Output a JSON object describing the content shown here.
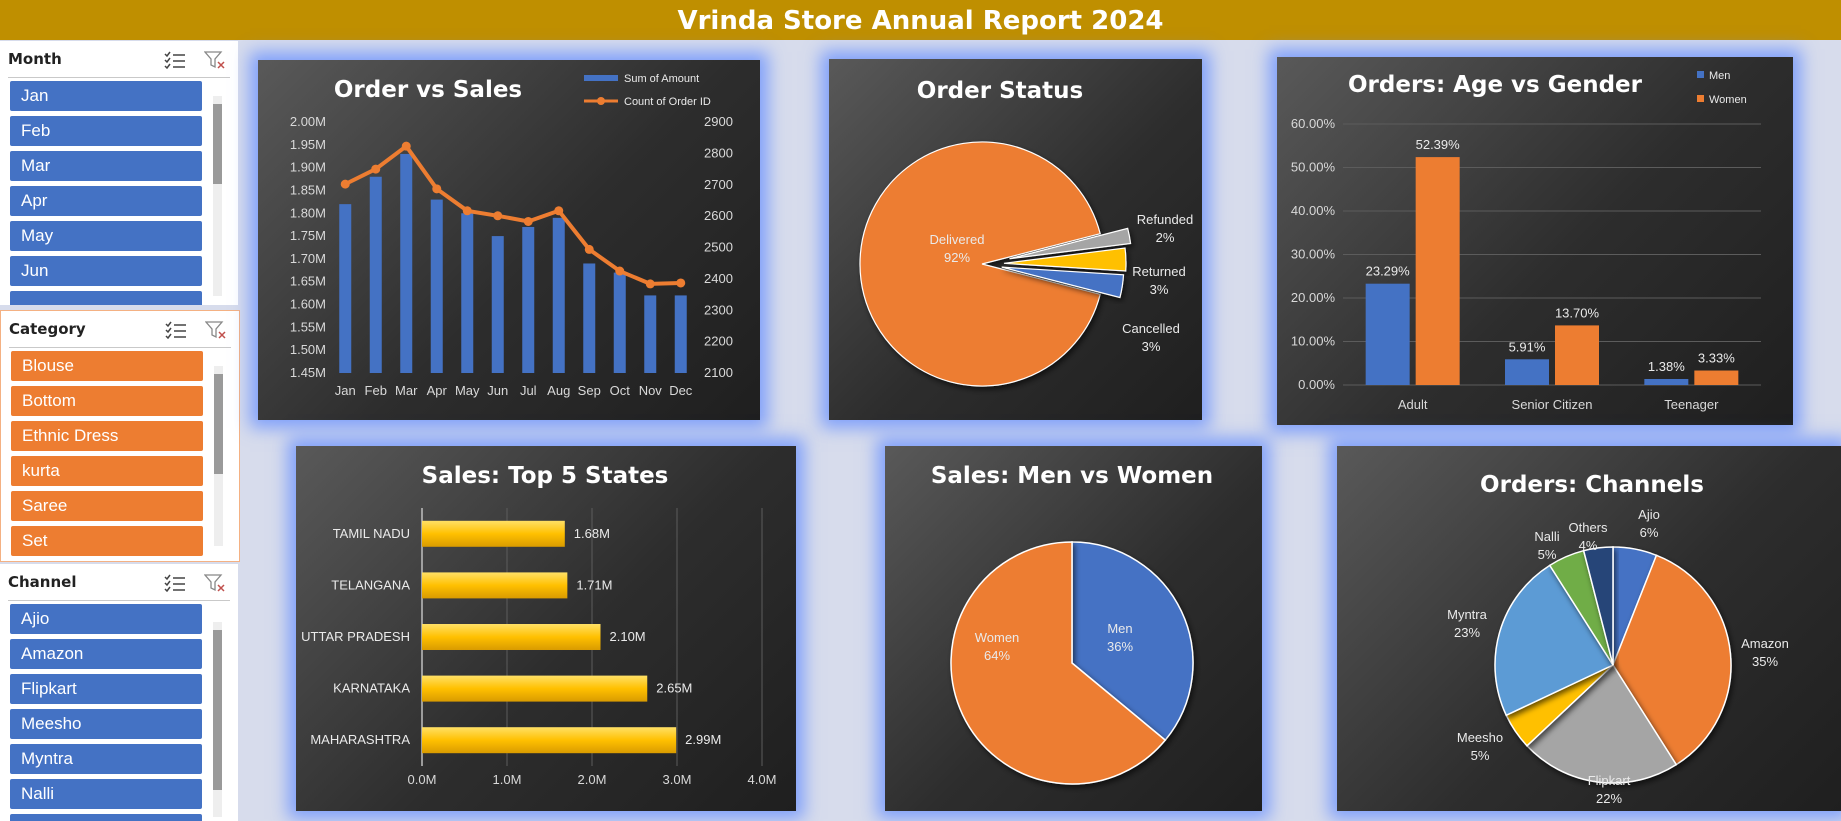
{
  "report": {
    "title": "Vrinda Store Annual Report 2024"
  },
  "slicers": [
    {
      "name": "Month",
      "color": "#4472c4",
      "items": [
        "Jan",
        "Feb",
        "Mar",
        "Apr",
        "May",
        "Jun",
        ""
      ]
    },
    {
      "name": "Category",
      "color": "#ed7d31",
      "items": [
        "Blouse",
        "Bottom",
        "Ethnic Dress",
        "kurta",
        "Saree",
        "Set"
      ]
    },
    {
      "name": "Channel",
      "color": "#4472c4",
      "items": [
        "Ajio",
        "Amazon",
        "Flipkart",
        "Meesho",
        "Myntra",
        "Nalli",
        ""
      ]
    }
  ],
  "chart_data": [
    {
      "type": "bar",
      "title": "Order vs Sales",
      "categories": [
        "Jan",
        "Feb",
        "Mar",
        "Apr",
        "May",
        "Jun",
        "Jul",
        "Aug",
        "Sep",
        "Oct",
        "Nov",
        "Dec"
      ],
      "series": [
        {
          "name": "Sum of Amount",
          "type": "bar",
          "color": "#4472c4",
          "axis": "left",
          "values": [
            1.82,
            1.88,
            1.93,
            1.83,
            1.8,
            1.75,
            1.77,
            1.79,
            1.69,
            1.67,
            1.62,
            1.62
          ]
        },
        {
          "name": "Count of Order ID",
          "type": "line",
          "color": "#ed7d31",
          "axis": "right",
          "values": [
            2702,
            2750,
            2823,
            2687,
            2617,
            2601,
            2583,
            2617,
            2494,
            2425,
            2384,
            2387
          ]
        }
      ],
      "ylim": [
        1.45,
        2.0
      ],
      "y_ticks": [
        "1.45M",
        "1.50M",
        "1.55M",
        "1.60M",
        "1.65M",
        "1.70M",
        "1.75M",
        "1.80M",
        "1.85M",
        "1.90M",
        "1.95M",
        "2.00M"
      ],
      "y2lim": [
        2100,
        2900
      ],
      "y2_ticks": [
        "2100",
        "2200",
        "2300",
        "2400",
        "2500",
        "2600",
        "2700",
        "2800",
        "2900"
      ],
      "legend": "top-right"
    },
    {
      "type": "pie",
      "title": "Order Status",
      "slices": [
        {
          "label": "Delivered",
          "value": 92,
          "pct": "92%",
          "color": "#ed7d31"
        },
        {
          "label": "Refunded",
          "value": 2,
          "pct": "2%",
          "color": "#a5a5a5"
        },
        {
          "label": "Returned",
          "value": 3,
          "pct": "3%",
          "color": "#ffc000"
        },
        {
          "label": "Cancelled",
          "value": 3,
          "pct": "3%",
          "color": "#4472c4"
        }
      ]
    },
    {
      "type": "bar",
      "title": "Orders: Age vs Gender",
      "categories": [
        "Adult",
        "Senior Citizen",
        "Teenager"
      ],
      "series": [
        {
          "name": "Men",
          "color": "#4472c4",
          "values": [
            23.29,
            5.91,
            1.38
          ],
          "labels": [
            "23.29%",
            "5.91%",
            "1.38%"
          ]
        },
        {
          "name": "Women",
          "color": "#ed7d31",
          "values": [
            52.39,
            13.7,
            3.33
          ],
          "labels": [
            "52.39%",
            "13.70%",
            "3.33%"
          ]
        }
      ],
      "ylim": [
        0,
        60
      ],
      "y_ticks": [
        "0.00%",
        "10.00%",
        "20.00%",
        "30.00%",
        "40.00%",
        "50.00%",
        "60.00%"
      ],
      "legend": "top-right"
    },
    {
      "type": "bar",
      "orientation": "horizontal",
      "title": "Sales: Top 5 States",
      "categories": [
        "TAMIL NADU",
        "TELANGANA",
        "UTTAR PRADESH",
        "KARNATAKA",
        "MAHARASHTRA"
      ],
      "values": [
        1.68,
        1.71,
        2.1,
        2.65,
        2.99
      ],
      "labels": [
        "1.68M",
        "1.71M",
        "2.10M",
        "2.65M",
        "2.99M"
      ],
      "color": "#ffc000",
      "xlim": [
        0,
        4
      ],
      "x_ticks": [
        "0.0M",
        "1.0M",
        "2.0M",
        "3.0M",
        "4.0M"
      ]
    },
    {
      "type": "pie",
      "title": "Sales: Men vs Women",
      "slices": [
        {
          "label": "Men",
          "value": 36,
          "pct": "36%",
          "color": "#4472c4"
        },
        {
          "label": "Women",
          "value": 64,
          "pct": "64%",
          "color": "#ed7d31"
        }
      ]
    },
    {
      "type": "pie",
      "title": "Orders: Channels",
      "slices": [
        {
          "label": "Ajio",
          "value": 6,
          "pct": "6%",
          "color": "#4472c4"
        },
        {
          "label": "Amazon",
          "value": 35,
          "pct": "35%",
          "color": "#ed7d31"
        },
        {
          "label": "Flipkart",
          "value": 22,
          "pct": "22%",
          "color": "#a5a5a5"
        },
        {
          "label": "Meesho",
          "value": 5,
          "pct": "5%",
          "color": "#ffc000"
        },
        {
          "label": "Myntra",
          "value": 23,
          "pct": "23%",
          "color": "#5b9bd5"
        },
        {
          "label": "Nalli",
          "value": 5,
          "pct": "5%",
          "color": "#70ad47"
        },
        {
          "label": "Others",
          "value": 4,
          "pct": "4%",
          "color": "#264478"
        }
      ]
    }
  ]
}
